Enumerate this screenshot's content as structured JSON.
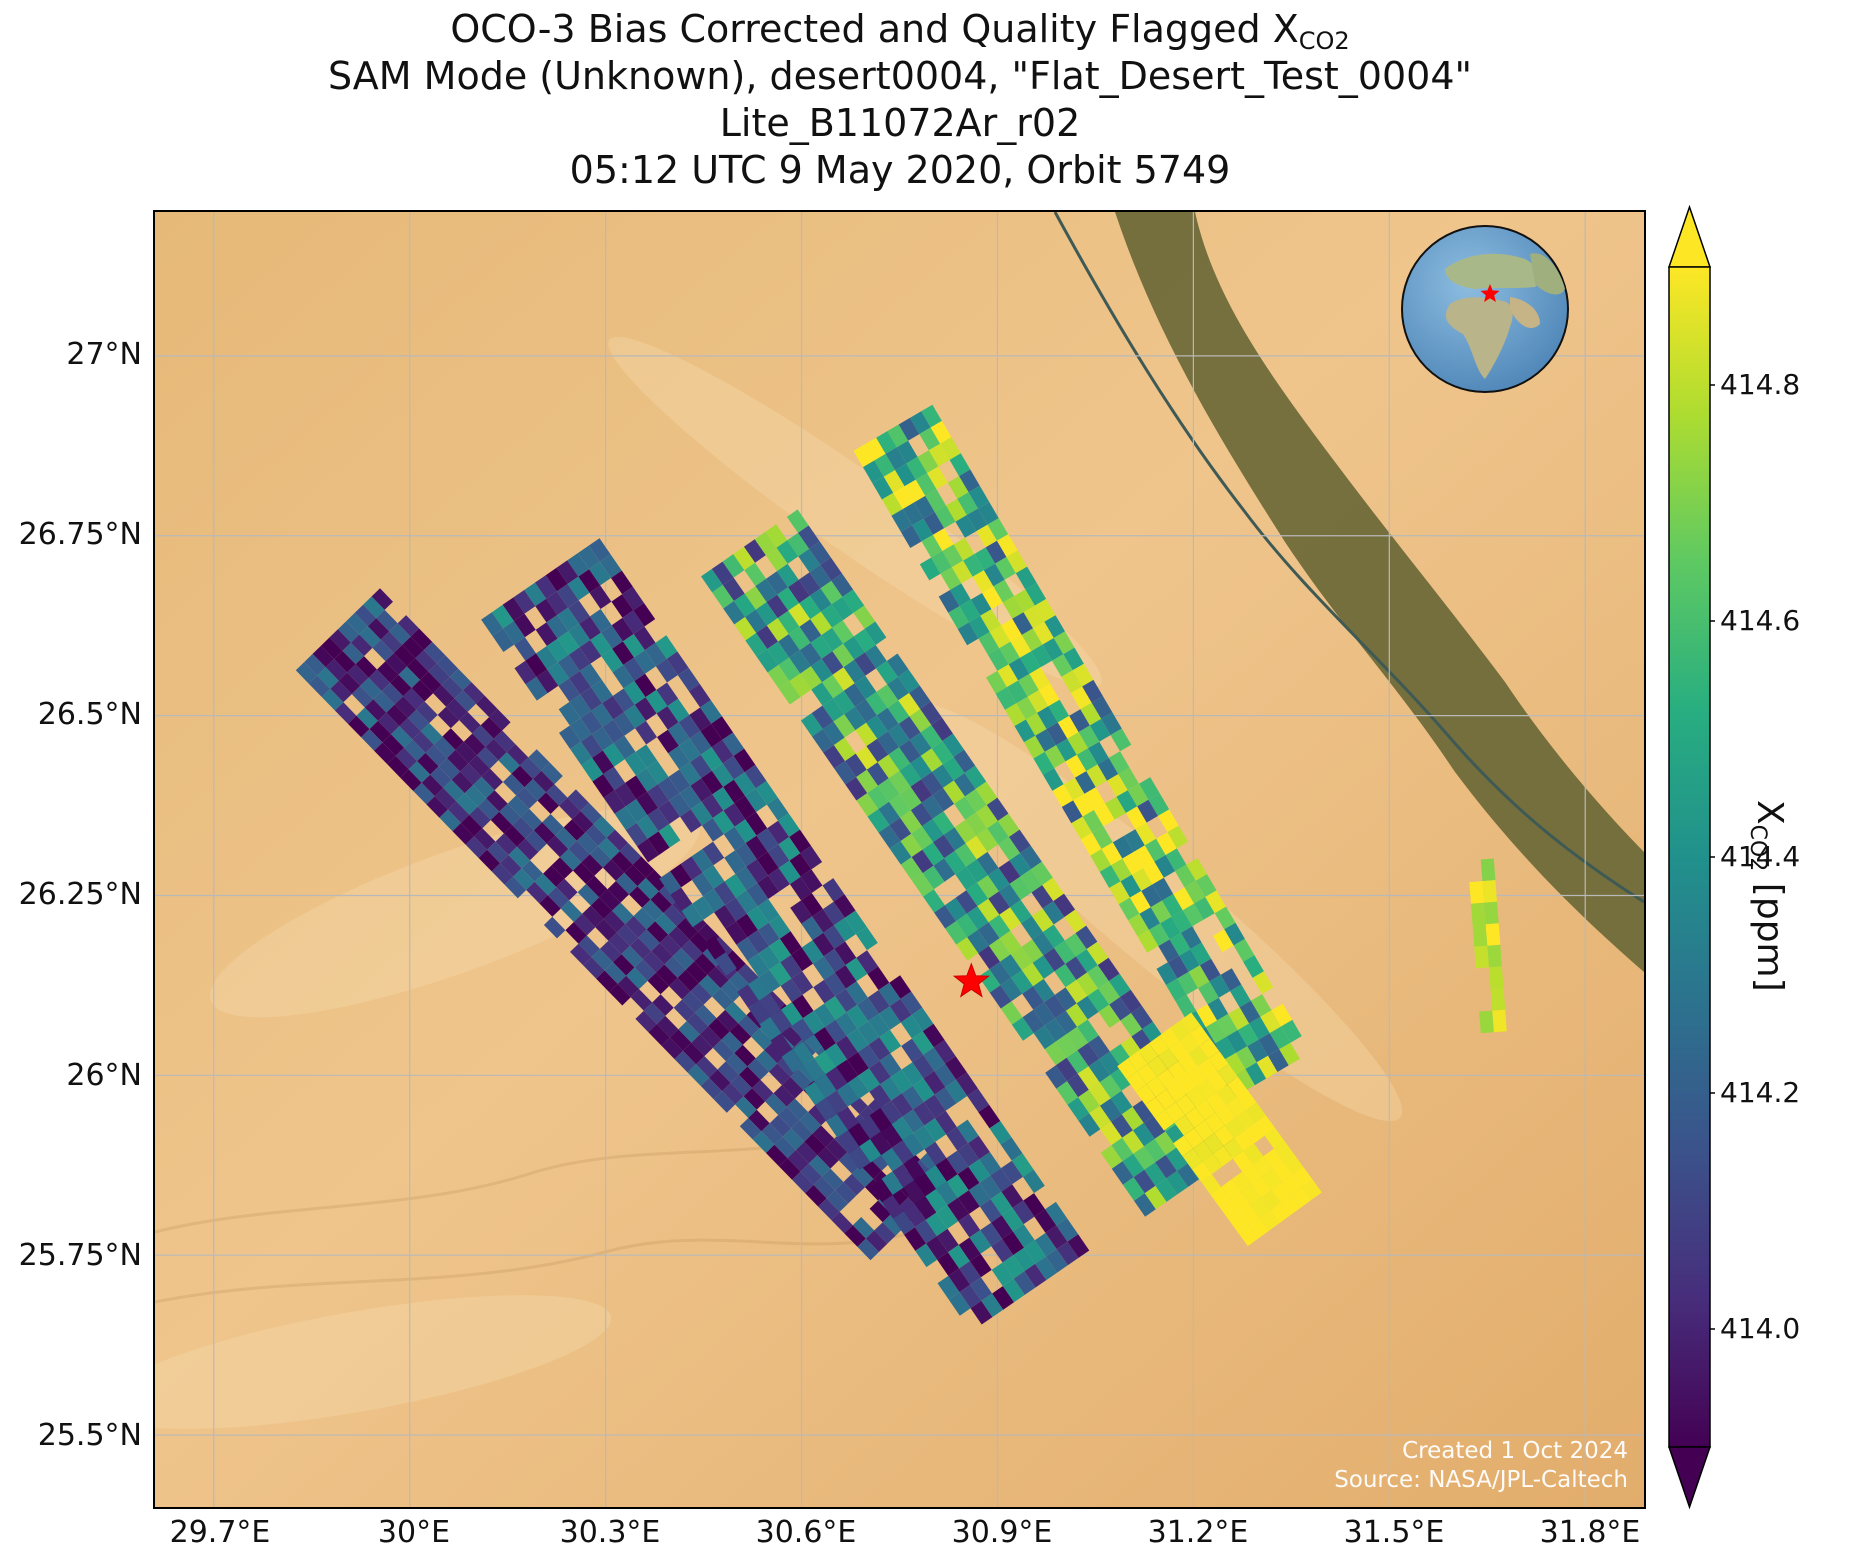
{
  "title": {
    "line1_prefix": "OCO-3 Bias Corrected and Quality Flagged X",
    "line1_sub": "CO2",
    "line2": "SAM Mode (Unknown), desert0004, \"Flat_Desert_Test_0004\"",
    "line3": "Lite_B11072Ar_r02",
    "line4": "05:12 UTC 9 May 2020, Orbit 5749"
  },
  "map": {
    "lon_range": [
      29.61,
      31.89
    ],
    "lat_range": [
      25.4,
      27.2
    ],
    "lat_ticks": [
      "27°N",
      "26.75°N",
      "26.5°N",
      "26.25°N",
      "26°N",
      "25.75°N",
      "25.5°N"
    ],
    "lon_ticks": [
      "29.7°E",
      "30°E",
      "30.3°E",
      "30.6°E",
      "30.9°E",
      "31.2°E",
      "31.5°E",
      "31.8°E"
    ],
    "target_marker": {
      "lon": 30.86,
      "lat": 26.13,
      "color": "#ff0000"
    },
    "colors": {
      "desert": "#e8b879",
      "desert_light": "#f1cc93",
      "nile_valley": "#6f6a3a",
      "grid": "#b9b9b9"
    },
    "credit_line1": "Created 1 Oct 2024",
    "credit_line2": "Source: NASA/JPL-Caltech",
    "inset_globe": {
      "center_lon": 25,
      "center_lat": 20,
      "ocean": "#6fa3cf",
      "land": "#b7b98e",
      "marker": "#ff0000"
    }
  },
  "colorbar": {
    "label_prefix": "X",
    "label_sub": "CO2",
    "label_suffix": " [ppm]",
    "range": [
      413.9,
      414.9
    ],
    "ticks": [
      "414.0",
      "414.2",
      "414.4",
      "414.6",
      "414.8"
    ],
    "colormap": "viridis",
    "extend": "both"
  },
  "chart_data": {
    "type": "heatmap",
    "xlabel": "",
    "ylabel": "",
    "xlim": [
      29.61,
      31.89
    ],
    "ylim": [
      25.4,
      27.2
    ],
    "value_range": [
      413.9,
      414.9
    ],
    "units": "ppm",
    "swaths": [
      {
        "lon_top": 29.89,
        "lat_top": 26.62,
        "lon_bot": 30.77,
        "lat_bot": 25.8,
        "width_deg": 0.18,
        "rows": 44,
        "cols": 10,
        "mean": 414.05,
        "spread": 0.25,
        "gap": 0.12
      },
      {
        "lon_top": 30.2,
        "lat_top": 26.69,
        "lon_bot": 30.95,
        "lat_bot": 25.7,
        "width_deg": 0.22,
        "rows": 44,
        "cols": 11,
        "mean": 414.15,
        "spread": 0.3,
        "gap": 0.14
      },
      {
        "lon_top": 30.52,
        "lat_top": 26.74,
        "lon_bot": 31.2,
        "lat_bot": 25.85,
        "width_deg": 0.18,
        "rows": 40,
        "cols": 9,
        "mean": 414.45,
        "spread": 0.4,
        "gap": 0.08
      },
      {
        "lon_top": 30.74,
        "lat_top": 26.9,
        "lon_bot": 31.32,
        "lat_bot": 26.0,
        "width_deg": 0.14,
        "rows": 40,
        "cols": 7,
        "mean": 414.55,
        "spread": 0.4,
        "gap": 0.12
      },
      {
        "lon_top": 31.14,
        "lat_top": 26.05,
        "lon_bot": 31.34,
        "lat_bot": 25.8,
        "width_deg": 0.14,
        "rows": 14,
        "cols": 7,
        "mean": 414.92,
        "spread": 0.05,
        "gap": 0.08
      },
      {
        "lon_top": 31.64,
        "lat_top": 26.3,
        "lon_bot": 31.66,
        "lat_bot": 26.06,
        "width_deg": 0.04,
        "rows": 8,
        "cols": 2,
        "mean": 414.85,
        "spread": 0.15,
        "gap": 0.3
      }
    ]
  }
}
